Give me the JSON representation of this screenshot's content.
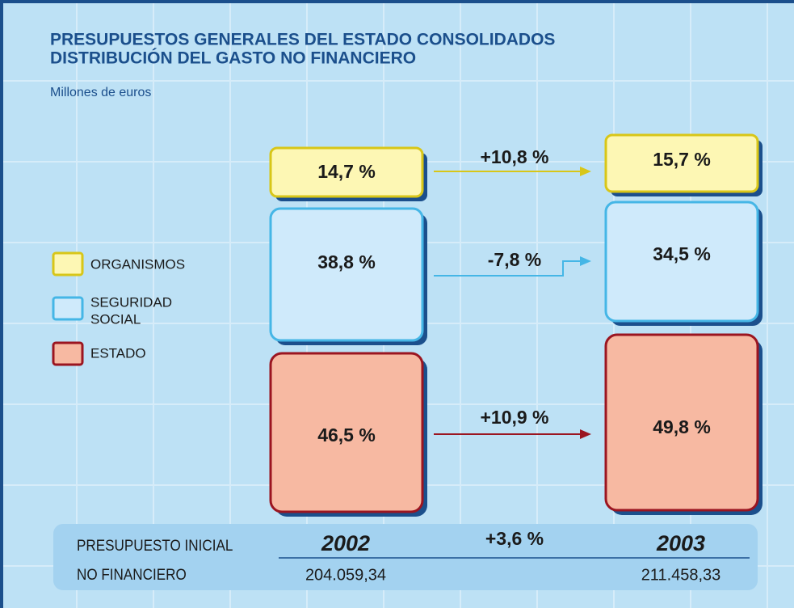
{
  "header": {
    "title": [
      "PRESUPUESTOS GENERALES DEL ESTADO CONSOLIDADOS",
      "DISTRIBUCIÓN DEL GASTO NO FINANCIERO"
    ],
    "subtitle": "Millones de euros"
  },
  "legend": [
    {
      "label": [
        "ORGANISMOS"
      ]
    },
    {
      "label": [
        "SEGURIDAD",
        "SOCIAL"
      ]
    },
    {
      "label": [
        "ESTADO"
      ]
    }
  ],
  "boxes_2002": [
    "14,7 %",
    "38,8 %",
    "46,5 %"
  ],
  "boxes_2003": [
    "15,7 %",
    "34,5 %",
    "49,8 %"
  ],
  "changes": [
    "+10,8 %",
    "-7,8 %",
    "+10,9 %"
  ],
  "footer": {
    "label": [
      "PRESUPUESTO INICIAL",
      "NO FINANCIERO"
    ],
    "year_2002": "2002",
    "year_2003": "2003",
    "change": "+3,6 %",
    "total_2002": "204.059,34",
    "total_2003": "211.458,33"
  }
}
